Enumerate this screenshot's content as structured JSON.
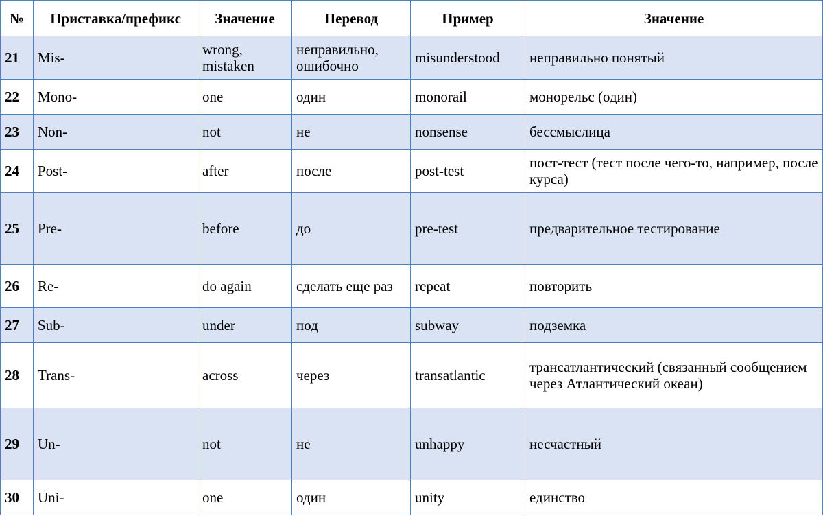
{
  "table": {
    "headers": [
      "№",
      "Приставка/префикс",
      "Значение",
      "Перевод",
      "Пример",
      "Значение"
    ],
    "rows": [
      {
        "num": "21",
        "prefix": "Mis-",
        "meaning": "wrong, mistaken",
        "translation": "неправильно, ошибочно",
        "example": "misunderstood",
        "example_meaning": "неправильно понятый"
      },
      {
        "num": "22",
        "prefix": "Mono-",
        "meaning": "one",
        "translation": "один",
        "example": "monorail",
        "example_meaning": "монорельс (один)"
      },
      {
        "num": "23",
        "prefix": "Non-",
        "meaning": "not",
        "translation": "не",
        "example": "nonsense",
        "example_meaning": "бессмыслица"
      },
      {
        "num": "24",
        "prefix": "Post-",
        "meaning": "after",
        "translation": "после",
        "example": "post-test",
        "example_meaning": "пост-тест (тест после чего-то, например, после курса)"
      },
      {
        "num": "25",
        "prefix": "Pre-",
        "meaning": "before",
        "translation": "до",
        "example": "pre-test",
        "example_meaning": "предварительное тестирование"
      },
      {
        "num": "26",
        "prefix": "Re-",
        "meaning": "do again",
        "translation": "сделать еще раз",
        "example": "repeat",
        "example_meaning": "повторить"
      },
      {
        "num": "27",
        "prefix": "Sub-",
        "meaning": "under",
        "translation": "под",
        "example": "subway",
        "example_meaning": "подземка"
      },
      {
        "num": "28",
        "prefix": "Trans-",
        "meaning": "across",
        "translation": "через",
        "example": "transatlantic",
        "example_meaning": "трансатлантический (связанный сообщением через Атлантический океан)"
      },
      {
        "num": "29",
        "prefix": "Un-",
        "meaning": "not",
        "translation": "не",
        "example": "unhappy",
        "example_meaning": "несчастный"
      },
      {
        "num": "30",
        "prefix": "Uni-",
        "meaning": "one",
        "translation": "один",
        "example": "unity",
        "example_meaning": "единство"
      }
    ]
  },
  "colors": {
    "border": "#4f81bd",
    "shaded_row": "#dae3f3",
    "plain_row": "#ffffff"
  }
}
